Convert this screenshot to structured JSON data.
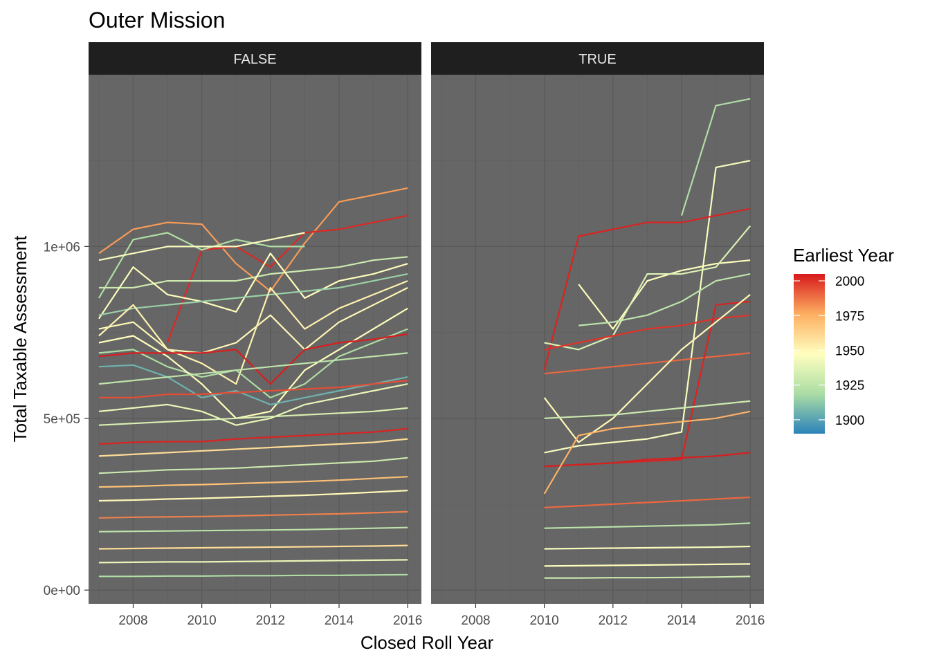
{
  "chart_data": {
    "type": "line",
    "title": "Outer Mission",
    "xlabel": "Closed Roll Year",
    "ylabel": "Total Taxable Assessment",
    "xlim": [
      2006.7,
      2016.4
    ],
    "ylim": [
      -40000,
      1500000
    ],
    "x_ticks": [
      2008,
      2010,
      2012,
      2014,
      2016
    ],
    "x_tick_labels": [
      "2008",
      "2010",
      "2012",
      "2014",
      "2016"
    ],
    "y_ticks": [
      0,
      500000,
      1000000
    ],
    "y_tick_labels": [
      "0e+00",
      "5e+05",
      "1e+06"
    ],
    "grid": true,
    "facets": [
      "FALSE",
      "TRUE"
    ],
    "legend": {
      "title": "Earliest Year",
      "position": "right",
      "range": [
        1890,
        2005
      ],
      "ticks": [
        2000,
        1975,
        1950,
        1925,
        1900
      ],
      "tick_labels": [
        "2000",
        "1975",
        "1950",
        "1925",
        "1900"
      ],
      "palette": [
        "#2b83ba",
        "#abdda4",
        "#ffffbf",
        "#fdae61",
        "#d7191c"
      ]
    },
    "series": [
      {
        "facet": "FALSE",
        "earliest_year": 1980,
        "x": [
          2007,
          2008,
          2009,
          2010,
          2011,
          2012,
          2013,
          2014,
          2015,
          2016
        ],
        "y": [
          980000,
          1050000,
          1070000,
          1065000,
          950000,
          870000,
          1010000,
          1130000,
          1150000,
          1170000
        ]
      },
      {
        "facet": "FALSE",
        "earliest_year": 2002,
        "x": [
          2009,
          2010,
          2011,
          2012,
          2013,
          2014,
          2015,
          2016
        ],
        "y": [
          720000,
          990000,
          1000000,
          940000,
          1040000,
          1050000,
          1070000,
          1090000
        ]
      },
      {
        "facet": "FALSE",
        "earliest_year": 1920,
        "x": [
          2007,
          2008,
          2009,
          2010,
          2011,
          2012,
          2013
        ],
        "y": [
          850000,
          1020000,
          1040000,
          990000,
          1020000,
          1000000,
          1000000
        ]
      },
      {
        "facet": "FALSE",
        "earliest_year": 1945,
        "x": [
          2007,
          2008,
          2009,
          2010,
          2011,
          2012,
          2013
        ],
        "y": [
          960000,
          980000,
          1000000,
          1000000,
          1000000,
          1020000,
          1040000
        ]
      },
      {
        "facet": "FALSE",
        "earliest_year": 1930,
        "x": [
          2007,
          2008,
          2009,
          2010,
          2011,
          2012,
          2013,
          2014,
          2015,
          2016
        ],
        "y": [
          880000,
          880000,
          900000,
          900000,
          900000,
          920000,
          930000,
          940000,
          960000,
          970000
        ]
      },
      {
        "facet": "FALSE",
        "earliest_year": 1948,
        "x": [
          2007,
          2008,
          2009,
          2010,
          2011,
          2012,
          2013,
          2014,
          2015,
          2016
        ],
        "y": [
          790000,
          940000,
          860000,
          840000,
          810000,
          980000,
          850000,
          900000,
          920000,
          950000
        ]
      },
      {
        "facet": "FALSE",
        "earliest_year": 1915,
        "x": [
          2007,
          2008,
          2009,
          2010,
          2011,
          2012,
          2013,
          2014,
          2015,
          2016
        ],
        "y": [
          800000,
          820000,
          830000,
          840000,
          850000,
          860000,
          870000,
          880000,
          900000,
          920000
        ]
      },
      {
        "facet": "FALSE",
        "earliest_year": 1950,
        "x": [
          2007,
          2008,
          2009,
          2010,
          2011,
          2012,
          2013,
          2014,
          2015,
          2016
        ],
        "y": [
          760000,
          780000,
          700000,
          690000,
          720000,
          800000,
          700000,
          780000,
          830000,
          880000
        ]
      },
      {
        "facet": "FALSE",
        "earliest_year": 1952,
        "x": [
          2007,
          2008,
          2009,
          2010,
          2011,
          2012,
          2013,
          2014,
          2015,
          2016
        ],
        "y": [
          740000,
          830000,
          700000,
          660000,
          600000,
          880000,
          760000,
          820000,
          860000,
          900000
        ]
      },
      {
        "facet": "FALSE",
        "earliest_year": 1920,
        "x": [
          2007,
          2008,
          2009,
          2010,
          2011,
          2012,
          2013,
          2014,
          2015,
          2016
        ],
        "y": [
          690000,
          700000,
          650000,
          620000,
          640000,
          560000,
          600000,
          680000,
          720000,
          760000
        ]
      },
      {
        "facet": "FALSE",
        "earliest_year": 1948,
        "x": [
          2007,
          2008,
          2009,
          2010,
          2011,
          2012,
          2013,
          2014,
          2015,
          2016
        ],
        "y": [
          720000,
          740000,
          680000,
          600000,
          500000,
          520000,
          640000,
          700000,
          760000,
          820000
        ]
      },
      {
        "facet": "FALSE",
        "earliest_year": 1905,
        "x": [
          2007,
          2008,
          2009,
          2010,
          2011,
          2012,
          2013,
          2014,
          2015,
          2016
        ],
        "y": [
          650000,
          655000,
          620000,
          560000,
          580000,
          540000,
          560000,
          580000,
          600000,
          620000
        ]
      },
      {
        "facet": "FALSE",
        "earliest_year": 2004,
        "x": [
          2007,
          2008,
          2009,
          2010,
          2011,
          2012,
          2013,
          2014,
          2015,
          2016
        ],
        "y": [
          680000,
          690000,
          690000,
          690000,
          700000,
          600000,
          700000,
          720000,
          730000,
          745000
        ]
      },
      {
        "facet": "FALSE",
        "earliest_year": 1995,
        "x": [
          2007,
          2008,
          2009,
          2010,
          2011,
          2012,
          2013,
          2014,
          2015,
          2016
        ],
        "y": [
          560000,
          560000,
          570000,
          570000,
          575000,
          580000,
          585000,
          590000,
          600000,
          610000
        ]
      },
      {
        "facet": "FALSE",
        "earliest_year": 2003,
        "x": [
          2007,
          2008,
          2009,
          2010,
          2011,
          2012,
          2013,
          2014,
          2015,
          2016
        ],
        "y": [
          425000,
          430000,
          432000,
          432000,
          440000,
          445000,
          450000,
          455000,
          460000,
          470000
        ]
      },
      {
        "facet": "FALSE",
        "earliest_year": 1940,
        "x": [
          2007,
          2008,
          2009,
          2010,
          2011,
          2012,
          2013,
          2014,
          2015,
          2016
        ],
        "y": [
          520000,
          530000,
          540000,
          520000,
          480000,
          500000,
          540000,
          560000,
          580000,
          600000
        ]
      },
      {
        "facet": "FALSE",
        "earliest_year": 1925,
        "x": [
          2007,
          2008,
          2009,
          2010,
          2011,
          2012,
          2013,
          2014,
          2015,
          2016
        ],
        "y": [
          600000,
          610000,
          620000,
          630000,
          640000,
          650000,
          660000,
          670000,
          680000,
          690000
        ]
      },
      {
        "facet": "FALSE",
        "earliest_year": 1935,
        "x": [
          2007,
          2008,
          2009,
          2010,
          2011,
          2012,
          2013,
          2014,
          2015,
          2016
        ],
        "y": [
          480000,
          485000,
          490000,
          495000,
          500000,
          505000,
          510000,
          515000,
          520000,
          530000
        ]
      },
      {
        "facet": "FALSE",
        "earliest_year": 1960,
        "x": [
          2007,
          2008,
          2009,
          2010,
          2011,
          2012,
          2013,
          2014,
          2015,
          2016
        ],
        "y": [
          390000,
          395000,
          400000,
          405000,
          410000,
          415000,
          420000,
          425000,
          430000,
          440000
        ]
      },
      {
        "facet": "FALSE",
        "earliest_year": 1930,
        "x": [
          2007,
          2008,
          2009,
          2010,
          2011,
          2012,
          2013,
          2014,
          2015,
          2016
        ],
        "y": [
          340000,
          345000,
          350000,
          352000,
          355000,
          360000,
          365000,
          370000,
          375000,
          385000
        ]
      },
      {
        "facet": "FALSE",
        "earliest_year": 1970,
        "x": [
          2007,
          2008,
          2009,
          2010,
          2011,
          2012,
          2013,
          2014,
          2015,
          2016
        ],
        "y": [
          300000,
          302000,
          305000,
          307000,
          310000,
          313000,
          316000,
          320000,
          325000,
          330000
        ]
      },
      {
        "facet": "FALSE",
        "earliest_year": 1950,
        "x": [
          2007,
          2008,
          2009,
          2010,
          2011,
          2012,
          2013,
          2014,
          2015,
          2016
        ],
        "y": [
          260000,
          262000,
          265000,
          267000,
          270000,
          273000,
          276000,
          280000,
          285000,
          290000
        ]
      },
      {
        "facet": "FALSE",
        "earliest_year": 1985,
        "x": [
          2007,
          2008,
          2009,
          2010,
          2011,
          2012,
          2013,
          2014,
          2015,
          2016
        ],
        "y": [
          210000,
          212000,
          213000,
          214000,
          216000,
          218000,
          220000,
          222000,
          225000,
          228000
        ]
      },
      {
        "facet": "FALSE",
        "earliest_year": 1925,
        "x": [
          2007,
          2008,
          2009,
          2010,
          2011,
          2012,
          2013,
          2014,
          2015,
          2016
        ],
        "y": [
          170000,
          171000,
          172000,
          173000,
          174000,
          175000,
          176000,
          178000,
          180000,
          182000
        ]
      },
      {
        "facet": "FALSE",
        "earliest_year": 1960,
        "x": [
          2007,
          2008,
          2009,
          2010,
          2011,
          2012,
          2013,
          2014,
          2015,
          2016
        ],
        "y": [
          120000,
          121000,
          122000,
          123000,
          124000,
          125000,
          126000,
          127000,
          128000,
          130000
        ]
      },
      {
        "facet": "FALSE",
        "earliest_year": 1940,
        "x": [
          2007,
          2008,
          2009,
          2010,
          2011,
          2012,
          2013,
          2014,
          2015,
          2016
        ],
        "y": [
          80000,
          81000,
          82000,
          82000,
          83000,
          84000,
          85000,
          86000,
          87000,
          88000
        ]
      },
      {
        "facet": "FALSE",
        "earliest_year": 1920,
        "x": [
          2007,
          2008,
          2009,
          2010,
          2011,
          2012,
          2013,
          2014,
          2015,
          2016
        ],
        "y": [
          40000,
          40000,
          41000,
          41000,
          42000,
          42000,
          43000,
          43000,
          44000,
          45000
        ]
      },
      {
        "facet": "TRUE",
        "earliest_year": 1920,
        "x": [
          2014,
          2015,
          2016
        ],
        "y": [
          1090000,
          1410000,
          1430000
        ]
      },
      {
        "facet": "TRUE",
        "earliest_year": 1945,
        "x": [
          2010,
          2011,
          2012,
          2013,
          2014,
          2015,
          2016
        ],
        "y": [
          400000,
          420000,
          430000,
          440000,
          460000,
          1230000,
          1250000
        ]
      },
      {
        "facet": "TRUE",
        "earliest_year": 2003,
        "x": [
          2010,
          2011,
          2012,
          2013,
          2014,
          2015,
          2016
        ],
        "y": [
          640000,
          1030000,
          1050000,
          1070000,
          1070000,
          1090000,
          1110000
        ]
      },
      {
        "facet": "TRUE",
        "earliest_year": 1948,
        "x": [
          2011,
          2012,
          2013,
          2014,
          2015,
          2016
        ],
        "y": [
          890000,
          760000,
          900000,
          930000,
          950000,
          960000
        ]
      },
      {
        "facet": "TRUE",
        "earliest_year": 1925,
        "x": [
          2011,
          2012,
          2013,
          2014,
          2015,
          2016
        ],
        "y": [
          770000,
          780000,
          800000,
          840000,
          900000,
          920000
        ]
      },
      {
        "facet": "TRUE",
        "earliest_year": 1935,
        "x": [
          2010,
          2011,
          2012,
          2013,
          2014,
          2015,
          2016
        ],
        "y": [
          720000,
          700000,
          740000,
          920000,
          920000,
          940000,
          1060000
        ]
      },
      {
        "facet": "TRUE",
        "earliest_year": 2000,
        "x": [
          2010,
          2011,
          2012,
          2013,
          2014,
          2015,
          2016
        ],
        "y": [
          700000,
          720000,
          740000,
          760000,
          770000,
          790000,
          800000
        ]
      },
      {
        "facet": "TRUE",
        "earliest_year": 1990,
        "x": [
          2010,
          2011,
          2012,
          2013,
          2014,
          2015,
          2016
        ],
        "y": [
          630000,
          640000,
          650000,
          660000,
          670000,
          680000,
          690000
        ]
      },
      {
        "facet": "TRUE",
        "earliest_year": 2003,
        "x": [
          2010,
          2011,
          2012,
          2013,
          2014,
          2015,
          2016
        ],
        "y": [
          360000,
          365000,
          370000,
          375000,
          380000,
          830000,
          840000
        ]
      },
      {
        "facet": "TRUE",
        "earliest_year": 2004,
        "x": [
          2010,
          2011,
          2012,
          2013,
          2014,
          2015,
          2016
        ],
        "y": [
          360000,
          365000,
          370000,
          380000,
          385000,
          390000,
          400000
        ]
      },
      {
        "facet": "TRUE",
        "earliest_year": 1950,
        "x": [
          2010,
          2011,
          2012,
          2013,
          2014,
          2015,
          2016
        ],
        "y": [
          560000,
          430000,
          500000,
          600000,
          700000,
          780000,
          860000
        ]
      },
      {
        "facet": "TRUE",
        "earliest_year": 1930,
        "x": [
          2010,
          2011,
          2012,
          2013,
          2014,
          2015,
          2016
        ],
        "y": [
          500000,
          505000,
          510000,
          520000,
          530000,
          540000,
          550000
        ]
      },
      {
        "facet": "TRUE",
        "earliest_year": 1975,
        "x": [
          2010,
          2011,
          2012,
          2013,
          2014,
          2015,
          2016
        ],
        "y": [
          280000,
          450000,
          470000,
          480000,
          490000,
          500000,
          520000
        ]
      },
      {
        "facet": "TRUE",
        "earliest_year": 1990,
        "x": [
          2010,
          2011,
          2012,
          2013,
          2014,
          2015,
          2016
        ],
        "y": [
          240000,
          245000,
          250000,
          255000,
          260000,
          265000,
          270000
        ]
      },
      {
        "facet": "TRUE",
        "earliest_year": 1925,
        "x": [
          2010,
          2011,
          2012,
          2013,
          2014,
          2015,
          2016
        ],
        "y": [
          180000,
          182000,
          184000,
          186000,
          188000,
          190000,
          195000
        ]
      },
      {
        "facet": "TRUE",
        "earliest_year": 1945,
        "x": [
          2010,
          2011,
          2012,
          2013,
          2014,
          2015,
          2016
        ],
        "y": [
          120000,
          121000,
          122000,
          123000,
          124000,
          125000,
          127000
        ]
      },
      {
        "facet": "TRUE",
        "earliest_year": 1948,
        "x": [
          2010,
          2011,
          2012,
          2013,
          2014,
          2015,
          2016
        ],
        "y": [
          70000,
          71000,
          72000,
          73000,
          74000,
          75000,
          76000
        ]
      },
      {
        "facet": "TRUE",
        "earliest_year": 1930,
        "x": [
          2010,
          2011,
          2012,
          2013,
          2014,
          2015,
          2016
        ],
        "y": [
          35000,
          35000,
          36000,
          36000,
          37000,
          38000,
          40000
        ]
      }
    ]
  }
}
